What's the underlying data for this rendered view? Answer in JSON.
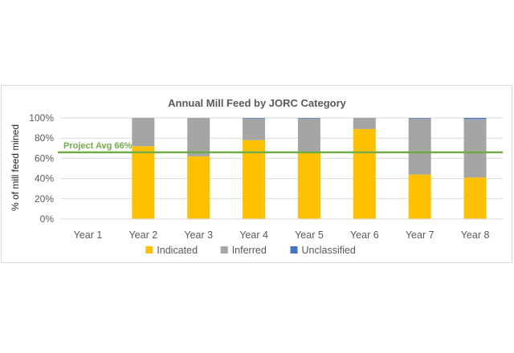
{
  "chart_data": {
    "type": "bar",
    "stacked": true,
    "title": "Annual Mill Feed by JORC Category",
    "ylabel": "% of mill feed mined",
    "xlabel": "",
    "ylim": [
      0,
      100
    ],
    "yticks": [
      0,
      20,
      40,
      60,
      80,
      100
    ],
    "ytick_labels": [
      "0%",
      "20%",
      "40%",
      "60%",
      "80%",
      "100%"
    ],
    "grid": true,
    "legend": "bottom",
    "categories": [
      "Year 1",
      "Year 2",
      "Year 3",
      "Year 4",
      "Year 5",
      "Year 6",
      "Year 7",
      "Year 8"
    ],
    "series": [
      {
        "name": "Indicated",
        "color": "#ffc000",
        "values": [
          0,
          72,
          62,
          78,
          66,
          89,
          44,
          41
        ]
      },
      {
        "name": "Inferred",
        "color": "#a5a5a5",
        "values": [
          0,
          28,
          38,
          21.5,
          33.5,
          11,
          55.5,
          58
        ]
      },
      {
        "name": "Unclassified",
        "color": "#4472c4",
        "values": [
          0,
          0,
          0,
          0.5,
          0.5,
          0,
          0.5,
          1
        ]
      }
    ],
    "reference_line": {
      "label": "Project Avg 66%",
      "value": 66,
      "color": "#70ad47"
    }
  }
}
